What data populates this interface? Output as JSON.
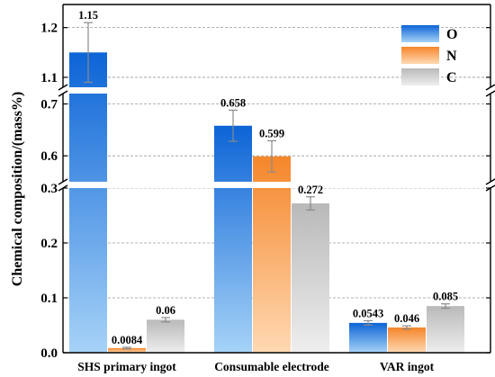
{
  "chart_data": {
    "type": "bar",
    "ylabel": "Chemical composition/(mass%)",
    "categories": [
      "SHS primary ingot",
      "Consumable electrode",
      "VAR ingot"
    ],
    "series": [
      {
        "name": "O",
        "values": [
          1.15,
          0.658,
          0.0543
        ],
        "errors": [
          0.06,
          0.03,
          0.004
        ],
        "value_labels": [
          "1.15",
          "0.658",
          "0.0543"
        ]
      },
      {
        "name": "N",
        "values": [
          0.0084,
          0.599,
          0.046
        ],
        "errors": [
          0.0015,
          0.03,
          0.003
        ],
        "value_labels": [
          "0.0084",
          "0.599",
          "0.046"
        ]
      },
      {
        "name": "C",
        "values": [
          0.06,
          0.272,
          0.085
        ],
        "errors": [
          0.004,
          0.012,
          0.004
        ],
        "value_labels": [
          "0.06",
          "0.272",
          "0.085"
        ]
      }
    ],
    "axis_segments": [
      {
        "range": [
          0,
          0.3
        ],
        "ticks": [
          "0.0",
          "0.1",
          "0.2",
          "0.3"
        ]
      },
      {
        "range": [
          0.55,
          0.72
        ],
        "ticks": [
          "0.6",
          "0.7"
        ]
      },
      {
        "range": [
          1.08,
          1.25
        ],
        "ticks": [
          "1.1",
          "1.2"
        ]
      }
    ],
    "colors": {
      "O": "#2a7bd9",
      "N": "#f7963f",
      "C": "#c8c8c8"
    },
    "grid": true,
    "legend": "top-right"
  }
}
